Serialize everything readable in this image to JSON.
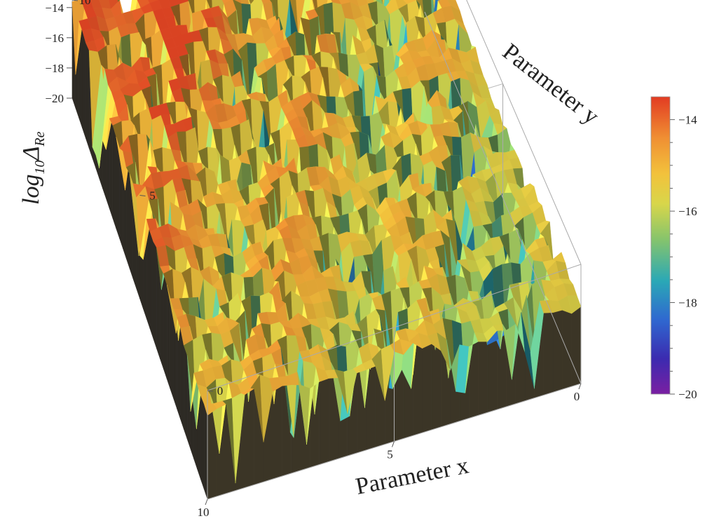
{
  "chart_data": {
    "type": "surface3d",
    "title": "",
    "xlabel": "Parameter x",
    "ylabel": "Parameter y",
    "zlabel": {
      "main": "log",
      "sub": "10",
      "delta": "Δ",
      "re": "Re"
    },
    "xlim": [
      0,
      10
    ],
    "ylim": [
      0,
      10
    ],
    "zlim": [
      -20,
      -13.5
    ],
    "x_ticks": [
      0,
      5,
      10
    ],
    "y_ticks": [
      0,
      5,
      10
    ],
    "z_ticks": [
      -20,
      -18,
      -16,
      -14
    ],
    "x_tick_labels": [
      "0",
      "5",
      "10"
    ],
    "y_tick_labels": [
      "0",
      "5",
      "10"
    ],
    "z_tick_labels": [
      "−20",
      "−18",
      "−16",
      "−14"
    ],
    "colorbar": {
      "range": [
        -20,
        -13.5
      ],
      "ticks": [
        -20,
        -18,
        -16,
        -14
      ],
      "tick_labels": [
        "−20",
        "−18",
        "−16",
        "−14"
      ],
      "colors": [
        "#7a1fa2",
        "#3b2bb0",
        "#2f68d0",
        "#2aa8b6",
        "#86c46c",
        "#d8d64a",
        "#f2c23c",
        "#f09033",
        "#e23b22"
      ]
    },
    "grid": true,
    "surface_note_level_ranges": {
      "peaks_near_far_corner": -14,
      "typical_plateau": -15.5,
      "spike_minimum": -20
    }
  }
}
